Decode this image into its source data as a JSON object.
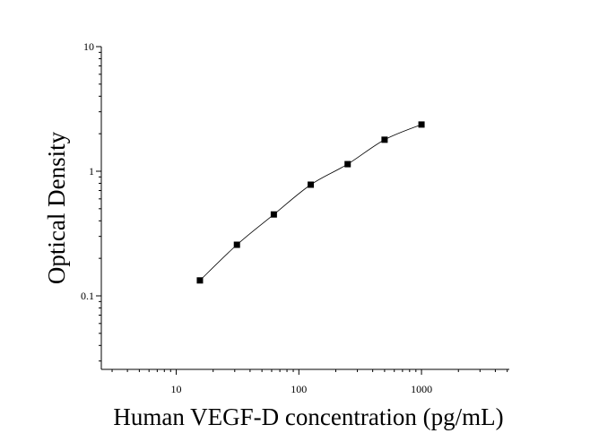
{
  "chart_data": {
    "type": "scatter",
    "x_label": "Human VEGF-D concentration (pg/mL)",
    "y_label": "Optical Density",
    "x": [
      15.6,
      31.25,
      62.5,
      125,
      250,
      500,
      1000
    ],
    "series": [
      {
        "color": "#000000",
        "values": [
          0.133,
          0.257,
          0.45,
          0.78,
          1.14,
          1.79,
          2.37
        ]
      }
    ],
    "marker": "square",
    "fit_line": true,
    "xscale": "log",
    "yscale": "log",
    "xlim": [
      2.45,
      5200
    ],
    "ylim": [
      0.0257,
      10
    ],
    "xticks": [
      10,
      100,
      1000
    ],
    "yticks": [
      0.1,
      1,
      10
    ]
  }
}
